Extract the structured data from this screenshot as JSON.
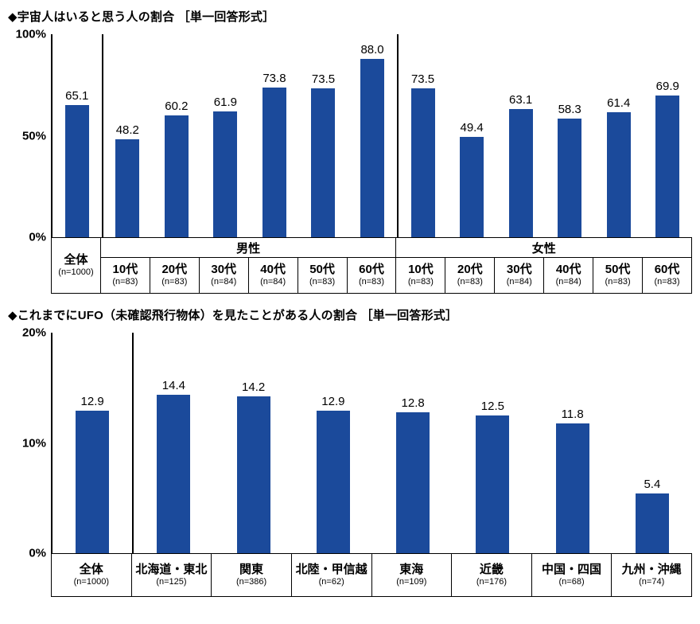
{
  "colors": {
    "bar": "#1b4a9b",
    "axis": "#000000"
  },
  "chart_data": [
    {
      "type": "bar",
      "title": "◆宇宙人はいると思う人の割合 ［単一回答形式］",
      "ylabel": "",
      "xlabel": "",
      "ylim": [
        0,
        100
      ],
      "yticks": [
        "100%",
        "50%",
        "0%"
      ],
      "grid": false,
      "legend": "none",
      "groups": [
        {
          "label": "",
          "span": 1
        },
        {
          "label": "男性",
          "span": 6
        },
        {
          "label": "女性",
          "span": 6
        }
      ],
      "categories": [
        {
          "name": "全体",
          "n": "(n=1000)",
          "value": 65.1,
          "label": "65.1"
        },
        {
          "name": "10代",
          "n": "(n=83)",
          "value": 48.2,
          "label": "48.2"
        },
        {
          "name": "20代",
          "n": "(n=83)",
          "value": 60.2,
          "label": "60.2"
        },
        {
          "name": "30代",
          "n": "(n=84)",
          "value": 61.9,
          "label": "61.9"
        },
        {
          "name": "40代",
          "n": "(n=84)",
          "value": 73.8,
          "label": "73.8"
        },
        {
          "name": "50代",
          "n": "(n=83)",
          "value": 73.5,
          "label": "73.5"
        },
        {
          "name": "60代",
          "n": "(n=83)",
          "value": 88.0,
          "label": "88.0"
        },
        {
          "name": "10代",
          "n": "(n=83)",
          "value": 73.5,
          "label": "73.5"
        },
        {
          "name": "20代",
          "n": "(n=83)",
          "value": 49.4,
          "label": "49.4"
        },
        {
          "name": "30代",
          "n": "(n=84)",
          "value": 63.1,
          "label": "63.1"
        },
        {
          "name": "40代",
          "n": "(n=84)",
          "value": 58.3,
          "label": "58.3"
        },
        {
          "name": "50代",
          "n": "(n=83)",
          "value": 61.4,
          "label": "61.4"
        },
        {
          "name": "60代",
          "n": "(n=83)",
          "value": 69.9,
          "label": "69.9"
        }
      ]
    },
    {
      "type": "bar",
      "title": "◆これまでにUFO（未確認飛行物体）を見たことがある人の割合 ［単一回答形式］",
      "ylabel": "",
      "xlabel": "",
      "ylim": [
        0,
        20
      ],
      "yticks": [
        "20%",
        "10%",
        "0%"
      ],
      "grid": false,
      "legend": "none",
      "groups": [
        {
          "label": "",
          "span": 1
        },
        {
          "label": "",
          "span": 7
        }
      ],
      "categories": [
        {
          "name": "全体",
          "n": "(n=1000)",
          "value": 12.9,
          "label": "12.9"
        },
        {
          "name": "北海道・東北",
          "n": "(n=125)",
          "value": 14.4,
          "label": "14.4"
        },
        {
          "name": "関東",
          "n": "(n=386)",
          "value": 14.2,
          "label": "14.2"
        },
        {
          "name": "北陸・甲信越",
          "n": "(n=62)",
          "value": 12.9,
          "label": "12.9"
        },
        {
          "name": "東海",
          "n": "(n=109)",
          "value": 12.8,
          "label": "12.8"
        },
        {
          "name": "近畿",
          "n": "(n=176)",
          "value": 12.5,
          "label": "12.5"
        },
        {
          "name": "中国・四国",
          "n": "(n=68)",
          "value": 11.8,
          "label": "11.8"
        },
        {
          "name": "九州・沖縄",
          "n": "(n=74)",
          "value": 5.4,
          "label": "5.4"
        }
      ]
    }
  ]
}
